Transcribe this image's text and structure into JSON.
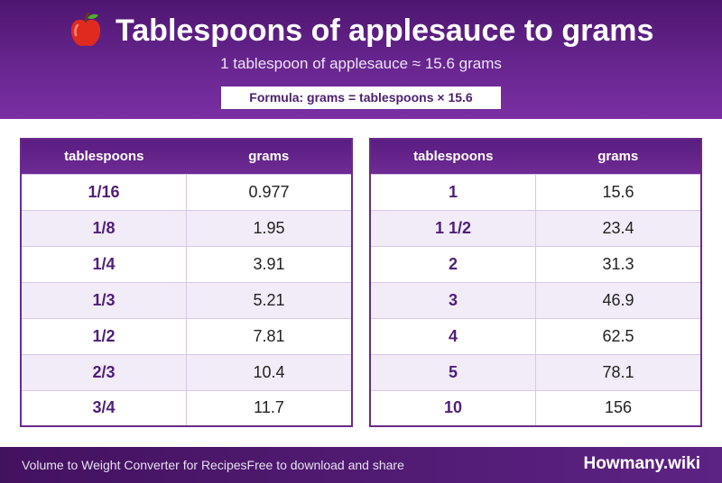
{
  "header": {
    "icon": "apple-icon",
    "title": "Tablespoons of applesauce to grams",
    "subtitle": "1 tablespoon of applesauce ≈ 15.6 grams",
    "formula": "Formula: grams = tablespoons × 15.6"
  },
  "tables": [
    {
      "columns": [
        "tablespoons",
        "grams"
      ],
      "rows": [
        {
          "amount": "1/16",
          "value": "0.977"
        },
        {
          "amount": "1/8",
          "value": "1.95"
        },
        {
          "amount": "1/4",
          "value": "3.91"
        },
        {
          "amount": "1/3",
          "value": "5.21"
        },
        {
          "amount": "1/2",
          "value": "7.81"
        },
        {
          "amount": "2/3",
          "value": "10.4"
        },
        {
          "amount": "3/4",
          "value": "11.7"
        }
      ]
    },
    {
      "columns": [
        "tablespoons",
        "grams"
      ],
      "rows": [
        {
          "amount": "1",
          "value": "15.6"
        },
        {
          "amount": "1 1/2",
          "value": "23.4"
        },
        {
          "amount": "2",
          "value": "31.3"
        },
        {
          "amount": "3",
          "value": "46.9"
        },
        {
          "amount": "4",
          "value": "62.5"
        },
        {
          "amount": "5",
          "value": "78.1"
        },
        {
          "amount": "10",
          "value": "156"
        }
      ]
    }
  ],
  "footer": {
    "left_text": "Volume to Weight Converter for Recipes",
    "middle_text": "Free to download and share",
    "brand": "Howmany.wiki"
  },
  "colors": {
    "header": "#6a2792",
    "accent": "#4f1f78",
    "row_alt": "#f2ecf8"
  }
}
